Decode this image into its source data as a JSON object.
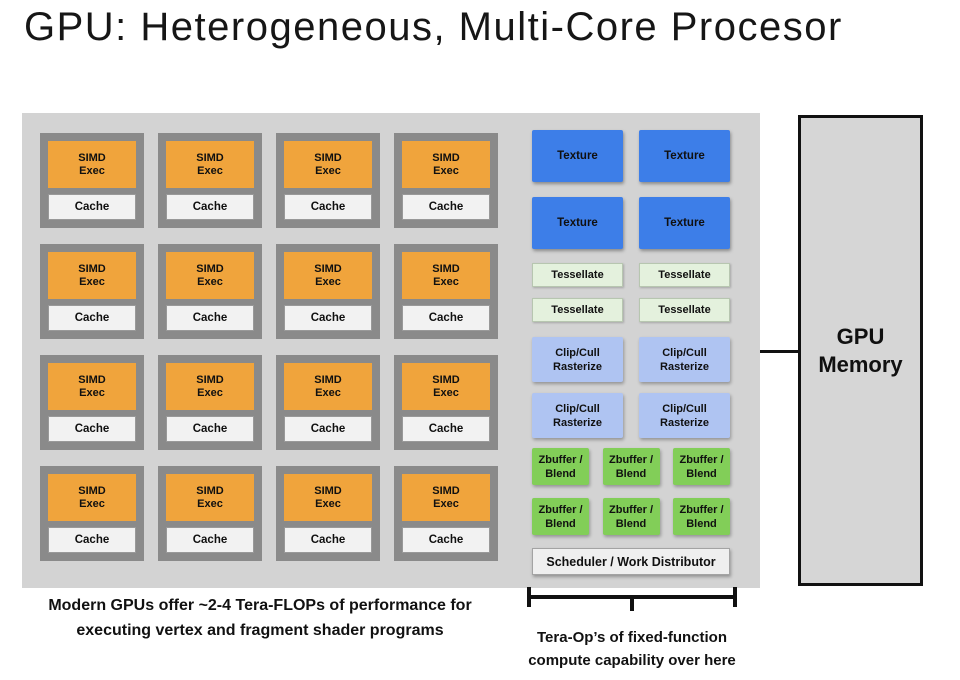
{
  "title": "GPU: Heterogeneous, Multi-Core Procesor",
  "diagram": {
    "core": {
      "simd_line1": "SIMD",
      "simd_line2": "Exec",
      "cache_label": "Cache",
      "count": 16
    },
    "texture": {
      "label": "Texture",
      "count": 4
    },
    "tessellate": {
      "label": "Tessellate",
      "count": 4
    },
    "clipcull": {
      "line1": "Clip/Cull",
      "line2": "Rasterize",
      "count": 4
    },
    "zbuffer": {
      "line1": "Zbuffer /",
      "line2": "Blend",
      "count": 6
    },
    "scheduler": {
      "label": "Scheduler / Work Distributor"
    },
    "memory": {
      "line1": "GPU",
      "line2": "Memory"
    }
  },
  "captions": {
    "left_line1": "Modern GPUs offer ~2-4 Tera-FLOPs of performance for",
    "left_line2": "executing vertex and fragment shader programs",
    "right_line1": "Tera-Op’s of fixed-function",
    "right_line2": "compute capability over here"
  },
  "colors": {
    "panel_bg": "#D3D3D3",
    "core_frame": "#8A8A8A",
    "simd_orange": "#F0A43C",
    "cache_bg": "#F2F2F2",
    "texture_blue": "#3D7EE8",
    "tessellate_green": "#E4F1DD",
    "clipcull_blue": "#AFC4F2",
    "zbuffer_green": "#82CE58",
    "scheduler_bg": "#EFEFEF",
    "memory_bg": "#D6D6D6"
  }
}
